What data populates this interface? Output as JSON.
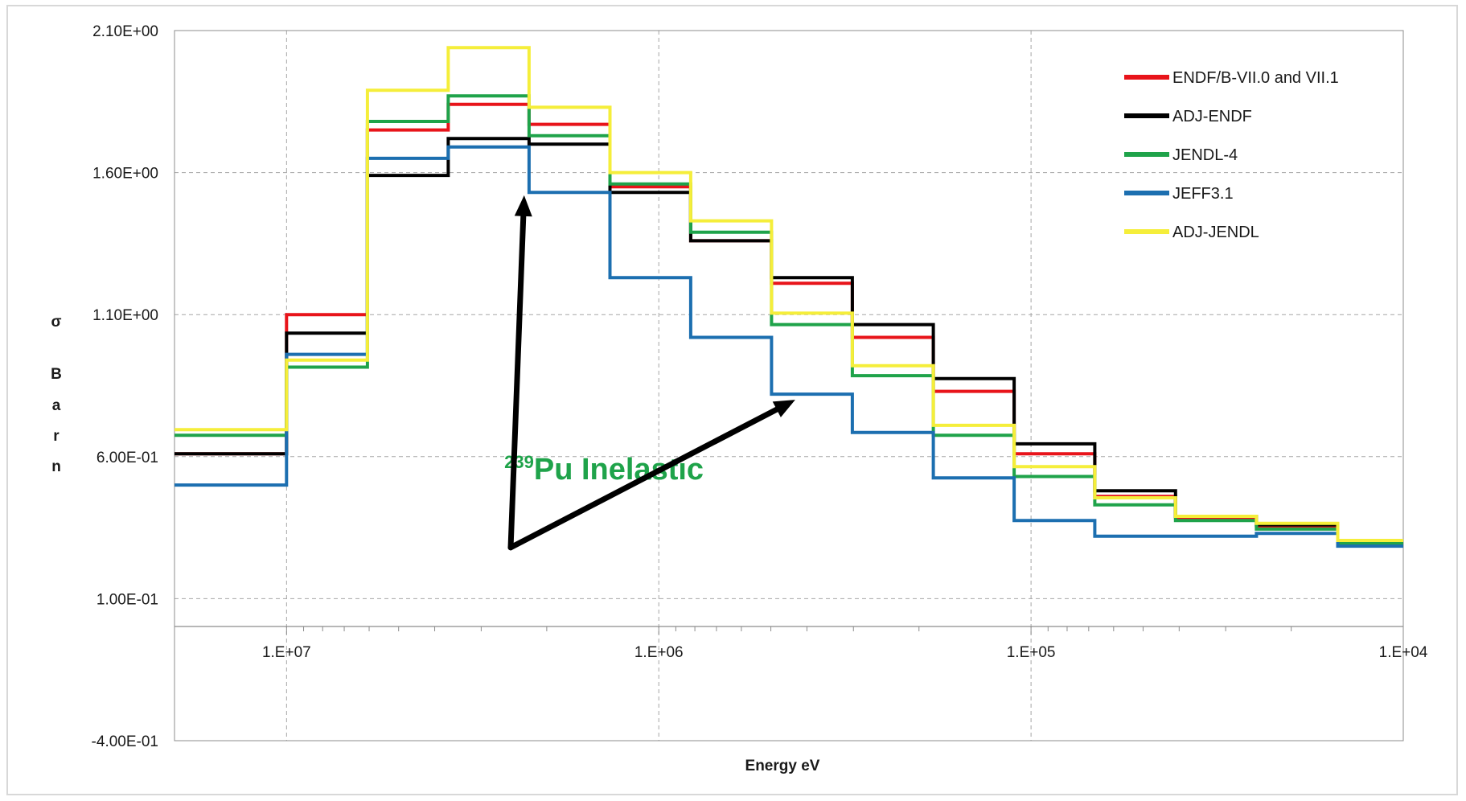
{
  "chart_data": {
    "type": "line",
    "title": "",
    "xlabel": "Energy eV",
    "ylabel_chars": [
      "σ",
      "B",
      "a",
      "r",
      "n"
    ],
    "x_scale": "log",
    "x_reversed": true,
    "xlim": [
      20000000,
      10000
    ],
    "ylim": [
      -0.4,
      2.1
    ],
    "yticks": [
      -0.4,
      0.1,
      0.6,
      1.1,
      1.6,
      2.1
    ],
    "ytick_labels": [
      "-4.00E-01",
      "1.00E-01",
      "6.00E-01",
      "1.10E+00",
      "1.60E+00",
      "2.10E+00"
    ],
    "xticks": [
      10000000,
      1000000,
      100000,
      10000
    ],
    "xtick_labels": [
      "1.E+07",
      "1.E+06",
      "1.E+05",
      "1.E+04"
    ],
    "grid": true,
    "legend_position": "top-right",
    "step": true,
    "bin_edges": [
      20000000,
      10000000,
      6065000,
      3679000,
      2231000,
      1353000,
      821000,
      498000,
      302000,
      183000,
      111000,
      67400,
      40900,
      24800,
      15000,
      10000
    ],
    "series": [
      {
        "name": "ENDF/B-VII.0 and VII.1",
        "color": "#e8141a",
        "values": [
          0.61,
          1.1,
          1.75,
          1.84,
          1.77,
          1.55,
          1.36,
          1.21,
          1.02,
          0.83,
          0.61,
          0.46,
          0.385,
          0.355,
          0.3
        ]
      },
      {
        "name": "ADJ-ENDF",
        "color": "#000000",
        "values": [
          0.61,
          1.035,
          1.59,
          1.72,
          1.7,
          1.53,
          1.36,
          1.23,
          1.065,
          0.875,
          0.645,
          0.48,
          0.39,
          0.36,
          0.295
        ]
      },
      {
        "name": "JENDL-4",
        "color": "#1fa34a",
        "values": [
          0.675,
          0.915,
          1.78,
          1.87,
          1.73,
          1.56,
          1.39,
          1.065,
          0.885,
          0.675,
          0.53,
          0.43,
          0.375,
          0.345,
          0.295
        ]
      },
      {
        "name": "JEFF3.1",
        "color": "#1c6fb0",
        "values": [
          0.5,
          0.96,
          1.65,
          1.69,
          1.53,
          1.23,
          1.02,
          0.82,
          0.685,
          0.525,
          0.375,
          0.32,
          0.32,
          0.33,
          0.285
        ]
      },
      {
        "name": "ADJ-JENDL",
        "color": "#f5ee3a",
        "values": [
          0.695,
          0.94,
          1.89,
          2.04,
          1.83,
          1.6,
          1.43,
          1.105,
          0.92,
          0.71,
          0.565,
          0.455,
          0.39,
          0.365,
          0.305
        ]
      }
    ],
    "annotation": {
      "text_sup": "239",
      "text_main": "Pu Inelastic",
      "color": "#1fa34a",
      "x": 2600000,
      "y": 0.52
    },
    "arrows": [
      {
        "from_x": 2500000,
        "from_y": 0.28,
        "to_x": 2300000,
        "to_y": 1.52
      },
      {
        "from_x": 2500000,
        "from_y": 0.28,
        "to_x": 430000,
        "to_y": 0.8
      }
    ]
  }
}
